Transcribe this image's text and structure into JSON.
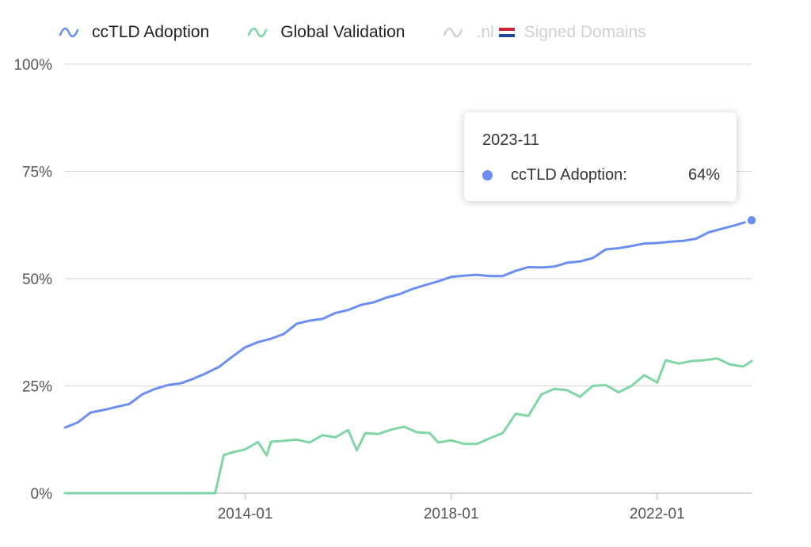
{
  "legend": {
    "items": [
      {
        "label": "ccTLD Adoption",
        "color": "#6b8ef0",
        "active": true
      },
      {
        "label": "Global Validation",
        "color": "#7fd6a4",
        "active": true
      },
      {
        "label_prefix": ".nl",
        "label_suffix": "Signed Domains",
        "color": "#d0d0d0",
        "active": false,
        "flag": "netherlands-flag"
      }
    ]
  },
  "tooltip": {
    "title": "2023-11",
    "series_label": "ccTLD Adoption:",
    "value": "64%",
    "color": "#6b8ef0"
  },
  "chart_data": {
    "type": "line",
    "xlim": [
      "2010-07",
      "2023-11"
    ],
    "ylim": [
      0,
      100
    ],
    "y_ticks": [
      {
        "v": 0,
        "label": "0%"
      },
      {
        "v": 25,
        "label": "25%"
      },
      {
        "v": 50,
        "label": "50%"
      },
      {
        "v": 75,
        "label": "75%"
      },
      {
        "v": 100,
        "label": "100%"
      }
    ],
    "x_ticks": [
      {
        "v": "2014-01",
        "label": "2014-01"
      },
      {
        "v": "2018-01",
        "label": "2018-01"
      },
      {
        "v": "2022-01",
        "label": "2022-01"
      }
    ],
    "grid": true,
    "legend_position": "top-left",
    "series": [
      {
        "name": "ccTLD Adoption",
        "color": "#6b8ef0",
        "points": [
          [
            "2010-07",
            15.3
          ],
          [
            "2010-10",
            16.5
          ],
          [
            "2011-01",
            18.8
          ],
          [
            "2011-04",
            19.4
          ],
          [
            "2011-07",
            20.1
          ],
          [
            "2011-10",
            20.8
          ],
          [
            "2012-01",
            23.0
          ],
          [
            "2012-04",
            24.3
          ],
          [
            "2012-07",
            25.2
          ],
          [
            "2012-10",
            25.6
          ],
          [
            "2013-01",
            26.7
          ],
          [
            "2013-04",
            28.0
          ],
          [
            "2013-07",
            29.5
          ],
          [
            "2013-10",
            31.8
          ],
          [
            "2014-01",
            34.0
          ],
          [
            "2014-04",
            35.2
          ],
          [
            "2014-07",
            36.0
          ],
          [
            "2014-10",
            37.1
          ],
          [
            "2015-01",
            39.5
          ],
          [
            "2015-04",
            40.2
          ],
          [
            "2015-07",
            40.6
          ],
          [
            "2015-10",
            42.0
          ],
          [
            "2016-01",
            42.7
          ],
          [
            "2016-04",
            43.9
          ],
          [
            "2016-07",
            44.5
          ],
          [
            "2016-10",
            45.6
          ],
          [
            "2017-01",
            46.4
          ],
          [
            "2017-04",
            47.6
          ],
          [
            "2017-07",
            48.5
          ],
          [
            "2017-10",
            49.4
          ],
          [
            "2018-01",
            50.4
          ],
          [
            "2018-04",
            50.7
          ],
          [
            "2018-07",
            50.9
          ],
          [
            "2018-10",
            50.6
          ],
          [
            "2019-01",
            50.6
          ],
          [
            "2019-04",
            51.8
          ],
          [
            "2019-07",
            52.7
          ],
          [
            "2019-10",
            52.6
          ],
          [
            "2020-01",
            52.8
          ],
          [
            "2020-04",
            53.7
          ],
          [
            "2020-07",
            54.0
          ],
          [
            "2020-10",
            54.8
          ],
          [
            "2021-01",
            56.8
          ],
          [
            "2021-04",
            57.1
          ],
          [
            "2021-07",
            57.6
          ],
          [
            "2021-10",
            58.2
          ],
          [
            "2022-01",
            58.3
          ],
          [
            "2022-04",
            58.6
          ],
          [
            "2022-07",
            58.8
          ],
          [
            "2022-10",
            59.3
          ],
          [
            "2023-01",
            60.8
          ],
          [
            "2023-04",
            61.6
          ],
          [
            "2023-07",
            62.4
          ],
          [
            "2023-11",
            63.6
          ]
        ]
      },
      {
        "name": "Global Validation",
        "color": "#7fd6a4",
        "points": [
          [
            "2010-07",
            0
          ],
          [
            "2013-06",
            0
          ],
          [
            "2013-08",
            8.9
          ],
          [
            "2013-10",
            9.5
          ],
          [
            "2014-01",
            10.2
          ],
          [
            "2014-04",
            11.9
          ],
          [
            "2014-06",
            8.8
          ],
          [
            "2014-07",
            12.0
          ],
          [
            "2014-10",
            12.2
          ],
          [
            "2015-01",
            12.5
          ],
          [
            "2015-04",
            11.8
          ],
          [
            "2015-07",
            13.5
          ],
          [
            "2015-10",
            13.0
          ],
          [
            "2016-01",
            14.7
          ],
          [
            "2016-03",
            10.0
          ],
          [
            "2016-05",
            14.0
          ],
          [
            "2016-08",
            13.8
          ],
          [
            "2016-11",
            14.8
          ],
          [
            "2017-02",
            15.5
          ],
          [
            "2017-05",
            14.2
          ],
          [
            "2017-08",
            14.0
          ],
          [
            "2017-10",
            11.8
          ],
          [
            "2018-01",
            12.3
          ],
          [
            "2018-04",
            11.5
          ],
          [
            "2018-07",
            11.5
          ],
          [
            "2018-10",
            12.8
          ],
          [
            "2019-01",
            14.0
          ],
          [
            "2019-04",
            18.5
          ],
          [
            "2019-07",
            18.0
          ],
          [
            "2019-10",
            23.0
          ],
          [
            "2020-01",
            24.3
          ],
          [
            "2020-04",
            24.0
          ],
          [
            "2020-07",
            22.5
          ],
          [
            "2020-10",
            25.0
          ],
          [
            "2021-01",
            25.2
          ],
          [
            "2021-04",
            23.5
          ],
          [
            "2021-07",
            25.0
          ],
          [
            "2021-10",
            27.5
          ],
          [
            "2022-01",
            25.8
          ],
          [
            "2022-03",
            31.0
          ],
          [
            "2022-06",
            30.2
          ],
          [
            "2022-09",
            30.8
          ],
          [
            "2022-12",
            31.0
          ],
          [
            "2023-03",
            31.4
          ],
          [
            "2023-06",
            30.0
          ],
          [
            "2023-09",
            29.5
          ],
          [
            "2023-11",
            30.8
          ]
        ]
      }
    ],
    "highlight": {
      "series": "ccTLD Adoption",
      "x": "2023-11",
      "y": 63.6
    }
  }
}
